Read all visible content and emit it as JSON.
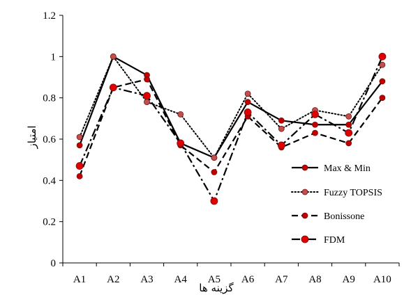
{
  "chart_data": {
    "type": "line",
    "title": "",
    "xlabel": "گزینه ها",
    "ylabel": "امتیاز",
    "categories": [
      "A1",
      "A2",
      "A3",
      "A4",
      "A5",
      "A6",
      "A7",
      "A8",
      "A9",
      "A10"
    ],
    "ylim": [
      0,
      1.2
    ],
    "yticks": [
      "0",
      "0.2",
      "0.4",
      "0.6",
      "0.8",
      "1",
      "1.2"
    ],
    "grid": false,
    "legend_position": "right",
    "series": [
      {
        "name": "Max & Min",
        "style": "solid",
        "color": "#000000",
        "marker_color": "#c00000",
        "values": [
          0.57,
          1.0,
          0.91,
          0.58,
          0.51,
          0.78,
          0.69,
          0.67,
          0.67,
          0.88
        ]
      },
      {
        "name": "Fuzzy TOPSIS",
        "style": "dotted",
        "color": "#000000",
        "marker_color": "#c0504d",
        "values": [
          0.61,
          1.0,
          0.78,
          0.72,
          0.51,
          0.82,
          0.65,
          0.74,
          0.71,
          0.96
        ]
      },
      {
        "name": "Bonissone",
        "style": "dashed",
        "color": "#000000",
        "marker_color": "#c00000",
        "values": [
          0.42,
          0.85,
          0.89,
          0.57,
          0.44,
          0.71,
          0.56,
          0.63,
          0.58,
          0.8
        ]
      },
      {
        "name": "FDM",
        "style": "dashdot",
        "color": "#000000",
        "marker_color": "#e00000",
        "values": [
          0.47,
          0.85,
          0.81,
          0.58,
          0.3,
          0.73,
          0.57,
          0.72,
          0.63,
          1.0
        ]
      }
    ]
  }
}
